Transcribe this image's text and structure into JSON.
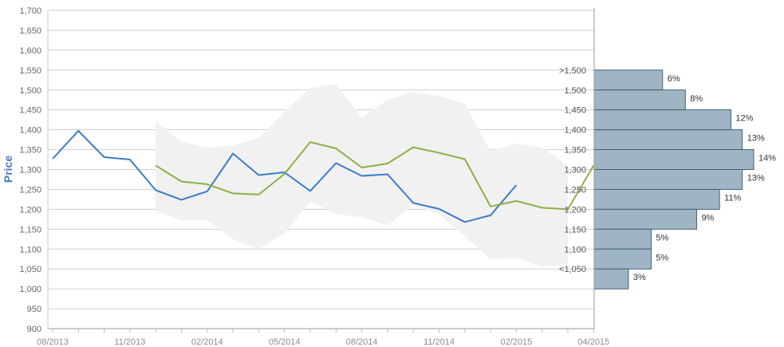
{
  "chart_data": {
    "type": "line",
    "ylabel": "Price",
    "ylim": [
      900,
      1700
    ],
    "yticks": [
      900,
      950,
      1000,
      1050,
      1100,
      1150,
      1200,
      1250,
      1300,
      1350,
      1400,
      1450,
      1500,
      1550,
      1600,
      1650,
      1700
    ],
    "x_labels": [
      "08/2013",
      "11/2013",
      "02/2014",
      "05/2014",
      "08/2014",
      "11/2014",
      "02/2015",
      "04/2015"
    ],
    "grid": true,
    "colors": {
      "series_1": "#3a7cc9",
      "series_2": "#8db04a",
      "band": "#f1f1f1",
      "histogram": "#9fb5c3",
      "histogram_border": "#41617a"
    },
    "series": [
      {
        "values": [
          1327,
          1397,
          1331,
          1325,
          1248,
          1224,
          1245,
          1340,
          1286,
          1293,
          1246,
          1316,
          1284,
          1288,
          1216,
          1201,
          1168,
          1185,
          1261
        ]
      },
      {
        "values": [
          null,
          null,
          null,
          null,
          1310,
          1270,
          1263,
          1240,
          1237,
          1289,
          1369,
          1353,
          1305,
          1315,
          1356,
          1342,
          1326,
          1207,
          1221,
          1204,
          1200,
          1310
        ]
      }
    ],
    "band": {
      "upper": [
        null,
        null,
        null,
        null,
        1420,
        1370,
        1355,
        1360,
        1380,
        1445,
        1505,
        1515,
        1430,
        1475,
        1495,
        1485,
        1465,
        1345,
        1365,
        1355,
        1310
      ],
      "lower": [
        null,
        null,
        null,
        null,
        1195,
        1173,
        1173,
        1125,
        1100,
        1140,
        1220,
        1188,
        1180,
        1160,
        1212,
        1187,
        1132,
        1075,
        1078,
        1055,
        1063
      ]
    },
    "histogram": {
      "buckets": [
        ">1,500",
        "1,500",
        "1,450",
        "1,400",
        "1,350",
        "1,300",
        "1,250",
        "1,200",
        "1,150",
        "1,100",
        "<1,050"
      ],
      "values": [
        6,
        8,
        12,
        13,
        14,
        13,
        11,
        9,
        5,
        5,
        3
      ],
      "labels": [
        "6%",
        "8%",
        "12%",
        "13%",
        "14%",
        "13%",
        "11%",
        "9%",
        "5%",
        "5%",
        "3%"
      ]
    }
  }
}
